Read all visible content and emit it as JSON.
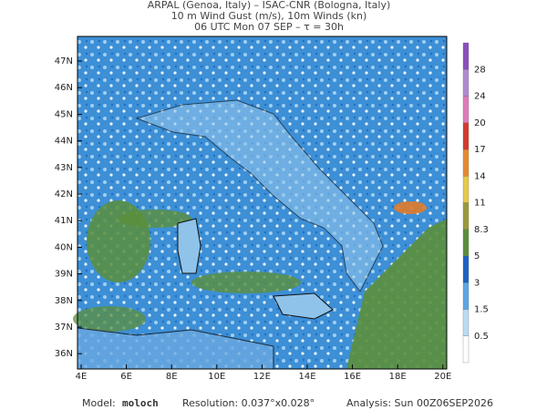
{
  "header": {
    "lines": [
      "ARPAL (Genoa, Italy)  –  ISAC-CNR (Bologna, Italy)",
      "10 m Wind Gust (m/s), 10m Winds (kn)",
      "06 UTC Mon 07 SEP  –  τ = 30h"
    ]
  },
  "map": {
    "lat_labels": [
      "47N",
      "46N",
      "45N",
      "44N",
      "43N",
      "42N",
      "41N",
      "40N",
      "39N",
      "38N",
      "37N",
      "36N"
    ],
    "lon_labels": [
      "4E",
      "6E",
      "8E",
      "10E",
      "12E",
      "14E",
      "16E",
      "18E",
      "20E"
    ]
  },
  "colorbar": {
    "labels": [
      "28",
      "24",
      "20",
      "17",
      "14",
      "11",
      "8.3",
      "5",
      "3",
      "1.5",
      "0.5"
    ]
  },
  "footer": {
    "model_label": "Model:",
    "model": "moloch",
    "resolution": "Resolution: 0.037°x0.028°",
    "analysis": "Analysis: Sun 00Z06SEP2026"
  }
}
